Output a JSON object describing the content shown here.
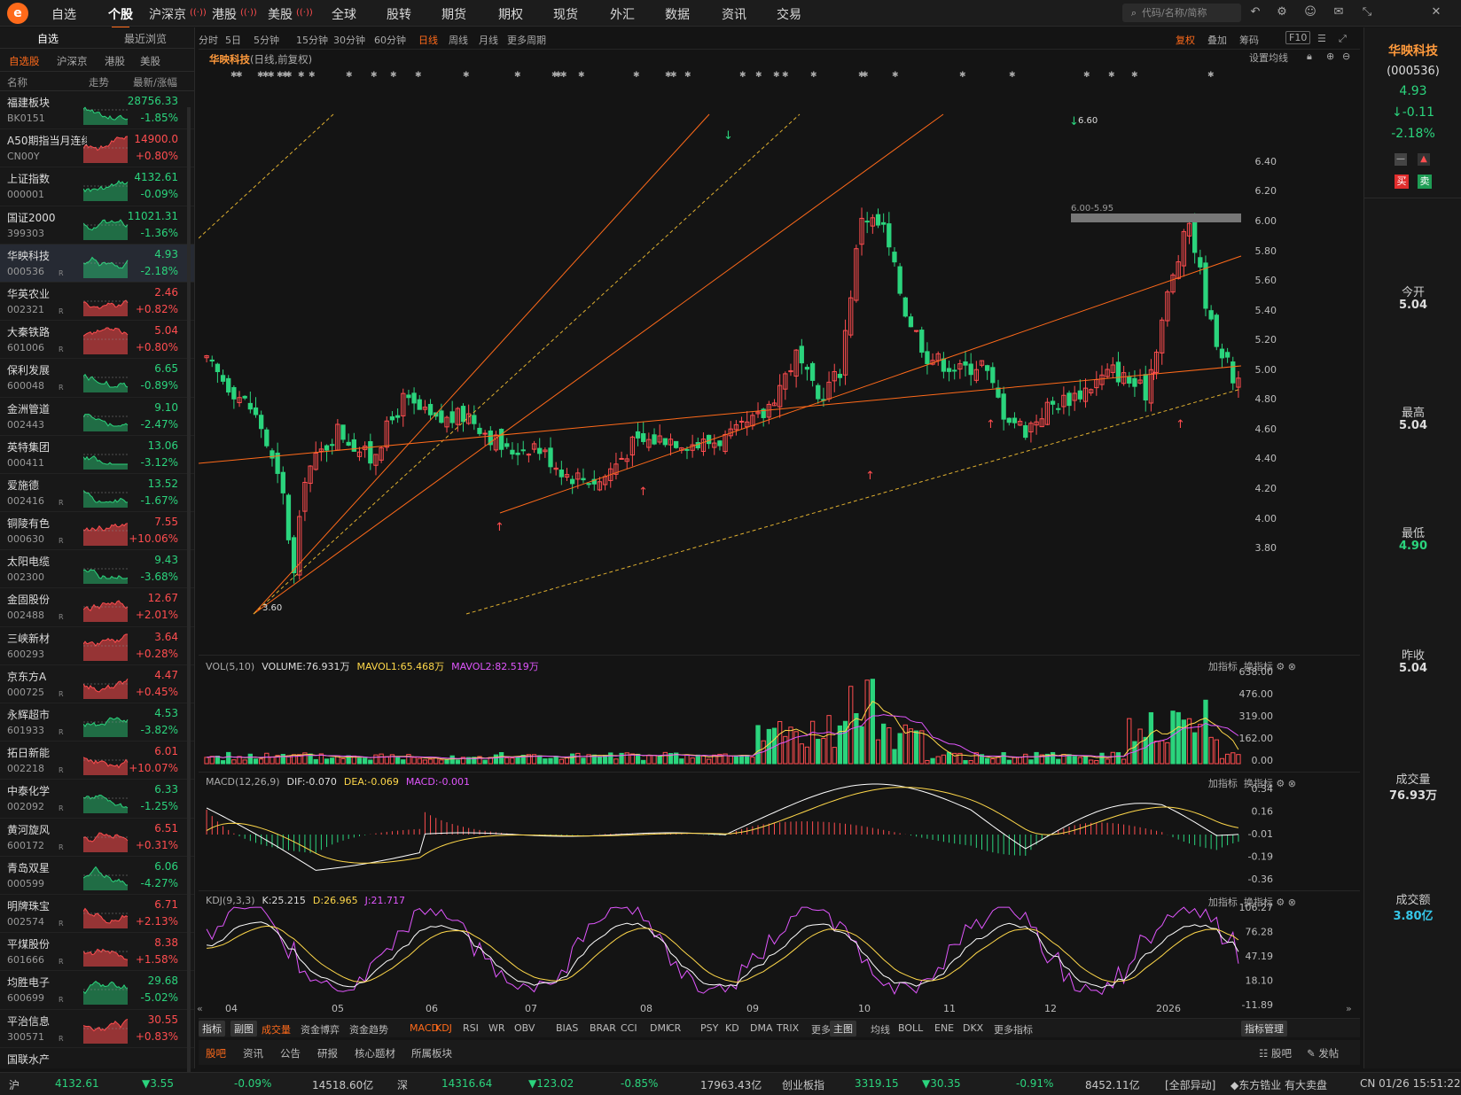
{
  "nav": {
    "items": [
      "自选",
      "个股",
      "沪深京",
      "港股",
      "美股",
      "全球",
      "股转",
      "期货",
      "期权",
      "现货",
      "外汇",
      "数据",
      "资讯",
      "交易"
    ],
    "active": "个股",
    "search_placeholder": "代码/名称/简称"
  },
  "left": {
    "tabs": [
      "自选",
      "最近浏览"
    ],
    "subtabs": [
      "自选股",
      "沪深京",
      "港股",
      "美股"
    ],
    "cols": [
      "名称",
      "走势",
      "最新/涨幅"
    ],
    "rows": [
      {
        "name": "福建板块",
        "code": "BK0151",
        "price": "28756.33",
        "chg": "-1.85%",
        "up": false,
        "r": false
      },
      {
        "name": "A50期指当月连续",
        "code": "CN00Y",
        "price": "14900.0",
        "chg": "+0.80%",
        "up": true,
        "r": false
      },
      {
        "name": "上证指数",
        "code": "000001",
        "price": "4132.61",
        "chg": "-0.09%",
        "up": false,
        "r": false
      },
      {
        "name": "国证2000",
        "code": "399303",
        "price": "11021.31",
        "chg": "-1.36%",
        "up": false,
        "r": false
      },
      {
        "name": "华映科技",
        "code": "000536",
        "price": "4.93",
        "chg": "-2.18%",
        "up": false,
        "r": true,
        "sel": true
      },
      {
        "name": "华英农业",
        "code": "002321",
        "price": "2.46",
        "chg": "+0.82%",
        "up": true,
        "r": true
      },
      {
        "name": "大秦铁路",
        "code": "601006",
        "price": "5.04",
        "chg": "+0.80%",
        "up": true,
        "r": true
      },
      {
        "name": "保利发展",
        "code": "600048",
        "price": "6.65",
        "chg": "-0.89%",
        "up": false,
        "r": true
      },
      {
        "name": "金洲管道",
        "code": "002443",
        "price": "9.10",
        "chg": "-2.47%",
        "up": false,
        "r": false
      },
      {
        "name": "英特集团",
        "code": "000411",
        "price": "13.06",
        "chg": "-3.12%",
        "up": false,
        "r": false
      },
      {
        "name": "爱施德",
        "code": "002416",
        "price": "13.52",
        "chg": "-1.67%",
        "up": false,
        "r": true
      },
      {
        "name": "铜陵有色",
        "code": "000630",
        "price": "7.55",
        "chg": "+10.06%",
        "up": true,
        "r": true
      },
      {
        "name": "太阳电缆",
        "code": "002300",
        "price": "9.43",
        "chg": "-3.68%",
        "up": false,
        "r": false
      },
      {
        "name": "金固股份",
        "code": "002488",
        "price": "12.67",
        "chg": "+2.01%",
        "up": true,
        "r": true
      },
      {
        "name": "三峡新材",
        "code": "600293",
        "price": "3.64",
        "chg": "+0.28%",
        "up": true,
        "r": false
      },
      {
        "name": "京东方A",
        "code": "000725",
        "price": "4.47",
        "chg": "+0.45%",
        "up": true,
        "r": true
      },
      {
        "name": "永辉超市",
        "code": "601933",
        "price": "4.53",
        "chg": "-3.82%",
        "up": false,
        "r": true
      },
      {
        "name": "拓日新能",
        "code": "002218",
        "price": "6.01",
        "chg": "+10.07%",
        "up": true,
        "r": true
      },
      {
        "name": "中泰化学",
        "code": "002092",
        "price": "6.33",
        "chg": "-1.25%",
        "up": false,
        "r": true
      },
      {
        "name": "黄河旋风",
        "code": "600172",
        "price": "6.51",
        "chg": "+0.31%",
        "up": true,
        "r": true
      },
      {
        "name": "青岛双星",
        "code": "000599",
        "price": "6.06",
        "chg": "-4.27%",
        "up": false,
        "r": false
      },
      {
        "name": "明牌珠宝",
        "code": "002574",
        "price": "6.71",
        "chg": "+2.13%",
        "up": true,
        "r": true
      },
      {
        "name": "平煤股份",
        "code": "601666",
        "price": "8.38",
        "chg": "+1.58%",
        "up": true,
        "r": true
      },
      {
        "name": "均胜电子",
        "code": "600699",
        "price": "29.68",
        "chg": "-5.02%",
        "up": false,
        "r": true
      },
      {
        "name": "平治信息",
        "code": "300571",
        "price": "30.55",
        "chg": "+0.83%",
        "up": true,
        "r": true
      },
      {
        "name": "国联水产",
        "code": "",
        "price": "",
        "chg": "",
        "up": false,
        "r": false
      }
    ]
  },
  "toolbar": {
    "periods": [
      "分时",
      "5日",
      "5分钟",
      "15分钟",
      "30分钟",
      "60分钟",
      "日线",
      "周线",
      "月线",
      "更多周期"
    ],
    "active": "日线",
    "right": [
      "复权",
      "叠加",
      "筹码",
      "F10"
    ]
  },
  "stock": {
    "name": "华映科技",
    "desc": "(日线,前复权)",
    "ma_label": "设置均线"
  },
  "chart_data": {
    "type": "candlestick",
    "price_axis": [
      "6.40",
      "6.20",
      "6.00",
      "5.80",
      "5.60",
      "5.40",
      "5.20",
      "5.00",
      "4.80",
      "4.60",
      "4.40",
      "4.20",
      "4.00",
      "3.80"
    ],
    "x_labels": [
      "04",
      "05",
      "06",
      "07",
      "08",
      "09",
      "10",
      "11",
      "12",
      "2026"
    ],
    "high_label": "6.60",
    "low_label": "3.60",
    "zone_label": "6.00-5.95",
    "vol": {
      "title": "VOL(5,10)",
      "volume": "VOLUME:76.931万",
      "ma1": "MAVOL1:65.468万",
      "ma2": "MAVOL2:82.519万",
      "axis": [
        "638.00",
        "476.00",
        "319.00",
        "162.00",
        "0.00"
      ]
    },
    "macd": {
      "title": "MACD(12,26,9)",
      "dif": "DIF:-0.070",
      "dea": "DEA:-0.069",
      "macd": "MACD:-0.001",
      "axis": [
        "0.34",
        "0.16",
        "-0.01",
        "-0.19",
        "-0.36"
      ]
    },
    "kdj": {
      "title": "KDJ(9,3,3)",
      "k": "K:25.215",
      "d": "D:26.965",
      "j": "J:21.717",
      "axis": [
        "106.27",
        "76.28",
        "47.19",
        "18.10",
        "-11.89"
      ]
    }
  },
  "panel_btns": [
    "加指标",
    "换指标"
  ],
  "indicators": [
    "指标",
    "副图",
    "成交量",
    "资金博弈",
    "资金趋势",
    "MACD",
    "KDJ",
    "RSI",
    "WR",
    "OBV",
    "BIAS",
    "BRAR",
    "CCI",
    "DMI",
    "CR",
    "PSY",
    "KD",
    "DMA",
    "TRIX",
    "更多",
    "主图",
    "均线",
    "BOLL",
    "ENE",
    "DKX",
    "更多指标",
    "指标管理"
  ],
  "bottom_tabs": [
    "股吧",
    "资讯",
    "公告",
    "研报",
    "核心题材",
    "所属板块",
    "股吧",
    "发帖"
  ],
  "right": {
    "name": "华映科技",
    "code": "(000536)",
    "price": "4.93",
    "change": "-0.11",
    "pct": "-2.18%",
    "buy": "买",
    "sell": "卖",
    "stats": [
      {
        "label": "今开",
        "value": "5.04"
      },
      {
        "label": "最高",
        "value": "5.04"
      },
      {
        "label": "最低",
        "value": "4.90"
      },
      {
        "label": "昨收",
        "value": "5.04"
      },
      {
        "label": "成交量",
        "value": "76.93万"
      },
      {
        "label": "成交额",
        "value": "3.80亿"
      }
    ]
  },
  "status": {
    "sh_label": "沪",
    "sh_val": "4132.61",
    "sh_chg": "3.55",
    "sh_pct": "-0.09%",
    "sh_amt": "14518.60亿",
    "sz_label": "深",
    "sz_val": "14316.64",
    "sz_chg": "123.02",
    "sz_pct": "-0.85%",
    "sz_amt": "17963.43亿",
    "cy_label": "创业板指",
    "cy_val": "3319.15",
    "cy_chg": "30.35",
    "cy_pct": "-0.91%",
    "cy_amt": "8452.11亿",
    "alert": "[全部异动]",
    "news": "东方锆业 有大卖盘",
    "time": "CN 01/26 15:51:22"
  },
  "colors": {
    "up": "#ff4d4f",
    "down": "#2bd47d",
    "accent": "#ff6a1a"
  }
}
